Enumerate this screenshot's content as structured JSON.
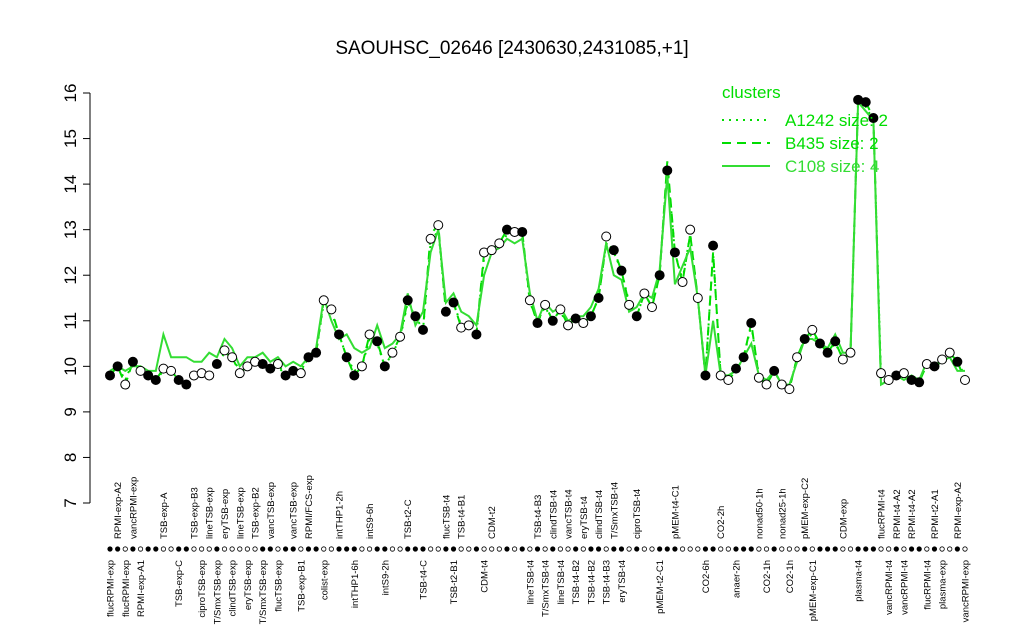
{
  "chart_data": {
    "type": "line",
    "title": "SAOUHSC_02646 [2430630,2431085,+1]",
    "ylim": [
      7,
      16
    ],
    "yticks": [
      7,
      8,
      9,
      10,
      11,
      12,
      13,
      14,
      15,
      16
    ],
    "categories": [
      "flucRPMI-exp",
      "RPMI-exp-A2",
      "flucRPMI-exp",
      "vancRPMI-exp",
      "RPMI-exp-A1",
      null,
      null,
      "TSB-exp-A",
      null,
      "TSB-exp-C",
      null,
      "TSB-exp-B3",
      "ciproTSB-exp",
      "lineTSB-exp",
      "T/SmxTSB-exp",
      "eryTSB-exp",
      "clindTSB-exp",
      "lineTSB-exp",
      "eryTSB-exp",
      "TSB-exp-B2",
      "T/SmxTSB-exp",
      "vancTSB-exp",
      "flucTSB-exp",
      null,
      "vancTSB-exp",
      "TSB-exp-B1",
      "RPMI/FCS-exp",
      null,
      "colist-exp",
      null,
      "intTHP1-2h",
      null,
      "intTHP1-6h",
      null,
      "intS9-6h",
      null,
      "intS9-2h",
      null,
      null,
      "TSB-t2-C",
      null,
      "TSB-t4-C",
      null,
      null,
      "flucTSB-t4",
      "TSB-t2-B1",
      "TSB-t4-B1",
      null,
      null,
      "CDM-t4",
      "CDM-t2",
      null,
      null,
      null,
      null,
      "lineTSB-t4",
      "TSB-t4-B3",
      "T/SmxTSB-t4",
      "clindTSB-t4",
      "lineTSB-t4",
      "vancTSB-t4",
      "TSB-t4-B2",
      "eryTSB-t4",
      "TSB-t4-B2",
      "clindTSB-t4",
      "TSB-t4-B3",
      "T/SmxTSB-t4",
      "eryTSB-t4",
      null,
      "ciproTSB-t4",
      null,
      null,
      "pMEM-t2-C1",
      null,
      "pMEM-t4-C1",
      null,
      null,
      null,
      "CO2-6h",
      null,
      "CO2-2h",
      null,
      "anaer-2h",
      null,
      null,
      "nonad50-1h",
      "CO2-1h",
      null,
      "nonad25-1h",
      "CO2-1h",
      null,
      "pMEM-exp-C2",
      "pMEM-exp-C1",
      null,
      null,
      null,
      "CDM-exp",
      null,
      "plasma-t4",
      null,
      null,
      "flucRPMI-t4",
      "vancRPMI-t4",
      "RPMI-t4-A2",
      "vancRPMI-t4",
      "RPMI-t4-A2",
      null,
      "flucRPMI-t4",
      "RPMI-t2-A1",
      "plasma-exp",
      null,
      "RPMI-exp-A2",
      "vancRPMI-exp"
    ],
    "values": [
      9.8,
      10.0,
      9.6,
      10.1,
      9.9,
      9.8,
      9.7,
      9.95,
      9.9,
      9.7,
      9.6,
      9.8,
      9.85,
      9.8,
      10.05,
      10.35,
      10.2,
      9.85,
      10.0,
      10.1,
      10.05,
      9.95,
      10.05,
      9.8,
      9.9,
      9.85,
      10.2,
      10.3,
      11.45,
      11.25,
      10.7,
      10.2,
      9.8,
      10.0,
      10.7,
      10.55,
      10.0,
      10.3,
      10.65,
      11.45,
      11.1,
      10.8,
      12.8,
      13.1,
      11.2,
      11.4,
      10.85,
      10.9,
      10.7,
      12.5,
      12.55,
      12.7,
      13.0,
      12.95,
      12.95,
      11.45,
      10.95,
      11.35,
      11.0,
      11.25,
      10.9,
      11.05,
      10.95,
      11.1,
      11.5,
      12.85,
      12.55,
      12.1,
      11.35,
      11.1,
      11.6,
      11.3,
      12.0,
      14.3,
      12.5,
      11.85,
      13.0,
      11.5,
      9.8,
      12.65,
      9.8,
      9.7,
      9.95,
      10.2,
      10.95,
      9.75,
      9.6,
      9.9,
      9.6,
      9.5,
      10.2,
      10.6,
      10.8,
      10.5,
      10.3,
      10.55,
      10.15,
      10.3,
      15.85,
      15.8,
      15.45,
      9.85,
      9.7,
      9.8,
      9.85,
      9.7,
      9.65,
      10.05,
      10.0,
      10.15,
      10.3,
      10.1,
      9.7
    ],
    "filled": [
      true,
      true,
      false,
      true,
      false,
      true,
      true,
      false,
      false,
      true,
      true,
      false,
      false,
      false,
      true,
      false,
      false,
      false,
      false,
      false,
      true,
      true,
      false,
      true,
      true,
      false,
      true,
      true,
      false,
      false,
      true,
      true,
      true,
      false,
      false,
      true,
      true,
      false,
      false,
      true,
      true,
      true,
      false,
      false,
      true,
      true,
      false,
      false,
      true,
      false,
      false,
      false,
      true,
      false,
      true,
      false,
      true,
      false,
      true,
      false,
      false,
      true,
      false,
      true,
      true,
      false,
      true,
      true,
      false,
      true,
      false,
      false,
      true,
      true,
      true,
      false,
      false,
      false,
      true,
      true,
      false,
      false,
      true,
      true,
      true,
      false,
      false,
      true,
      false,
      false,
      false,
      true,
      false,
      true,
      true,
      true,
      false,
      false,
      true,
      true,
      true,
      false,
      false,
      true,
      false,
      true,
      true,
      false,
      true,
      false,
      false,
      true,
      false
    ],
    "legend_title": "clusters",
    "series": [
      {
        "name": "A1242 size: 2",
        "color": "#00dd00",
        "dash": "dotted",
        "values": [
          9.8,
          10.0,
          9.7,
          10.1,
          9.9,
          9.8,
          9.7,
          9.9,
          9.9,
          9.7,
          9.6,
          9.8,
          9.8,
          9.8,
          10.0,
          10.3,
          10.2,
          9.9,
          10.0,
          10.1,
          10.0,
          9.9,
          10.0,
          9.8,
          9.9,
          9.9,
          10.2,
          10.3,
          11.4,
          11.2,
          10.7,
          10.2,
          9.9,
          10.0,
          10.6,
          10.5,
          10.0,
          10.3,
          10.6,
          11.4,
          11.1,
          10.8,
          12.7,
          13.0,
          11.2,
          11.4,
          10.9,
          10.9,
          10.7,
          12.4,
          12.5,
          12.6,
          12.9,
          12.9,
          12.9,
          11.4,
          11.0,
          11.3,
          11.0,
          11.2,
          10.9,
          11.0,
          11.0,
          11.1,
          11.5,
          12.7,
          12.5,
          12.1,
          11.4,
          11.1,
          11.6,
          11.3,
          12.0,
          14.4,
          12.5,
          11.9,
          12.9,
          11.5,
          9.8,
          12.5,
          9.8,
          9.7,
          9.9,
          10.2,
          10.9,
          9.8,
          9.6,
          9.9,
          9.6,
          9.5,
          10.2,
          10.6,
          10.7,
          10.5,
          10.3,
          10.5,
          10.2,
          10.3,
          15.8,
          15.7,
          15.4,
          9.8,
          9.7,
          9.8,
          9.8,
          9.7,
          9.7,
          10.0,
          10.0,
          10.1,
          10.3,
          10.1,
          9.8
        ]
      },
      {
        "name": "B435 size: 2",
        "color": "#00dd00",
        "dash": "dashed",
        "values": [
          9.8,
          10.0,
          9.6,
          10.1,
          9.9,
          9.8,
          9.7,
          9.95,
          9.9,
          9.7,
          9.6,
          9.8,
          9.85,
          9.8,
          10.05,
          10.35,
          10.2,
          9.85,
          10.0,
          10.1,
          10.05,
          9.95,
          10.05,
          9.8,
          9.9,
          9.85,
          10.2,
          10.3,
          11.45,
          11.25,
          10.7,
          10.2,
          9.8,
          10.0,
          10.7,
          10.55,
          10.0,
          10.3,
          10.65,
          11.45,
          11.1,
          10.8,
          12.9,
          13.1,
          11.2,
          11.4,
          10.85,
          10.9,
          10.7,
          12.5,
          12.55,
          12.7,
          13.0,
          12.95,
          12.95,
          11.45,
          10.95,
          11.35,
          11.0,
          11.25,
          10.9,
          11.05,
          10.95,
          11.1,
          11.5,
          12.7,
          12.55,
          12.1,
          11.35,
          11.1,
          11.6,
          11.3,
          12.0,
          14.5,
          12.5,
          11.85,
          12.9,
          11.5,
          9.8,
          12.5,
          9.8,
          9.7,
          9.95,
          10.2,
          10.95,
          9.75,
          9.6,
          9.9,
          9.6,
          9.5,
          10.2,
          10.6,
          10.8,
          10.5,
          10.3,
          10.55,
          10.15,
          10.3,
          15.85,
          15.8,
          15.45,
          9.6,
          9.7,
          9.8,
          9.85,
          9.7,
          9.65,
          10.05,
          10.0,
          10.15,
          10.3,
          10.1,
          9.7
        ]
      },
      {
        "name": "C108 size: 4",
        "color": "#33dd33",
        "dash": "solid",
        "values": [
          9.9,
          10.0,
          9.9,
          10.0,
          10.0,
          9.9,
          9.9,
          10.7,
          10.2,
          10.2,
          10.2,
          10.1,
          10.1,
          10.3,
          10.2,
          10.6,
          10.4,
          10.0,
          10.2,
          10.2,
          10.3,
          10.1,
          10.2,
          10.0,
          10.1,
          10.0,
          10.2,
          10.4,
          11.5,
          11.0,
          10.6,
          10.7,
          10.4,
          10.3,
          10.4,
          10.9,
          10.4,
          10.5,
          10.7,
          11.6,
          10.9,
          11.2,
          12.5,
          13.0,
          11.4,
          11.6,
          11.2,
          11.1,
          10.9,
          12.0,
          12.5,
          12.6,
          12.8,
          12.7,
          12.8,
          11.6,
          11.0,
          11.4,
          11.2,
          11.3,
          11.0,
          11.1,
          11.1,
          11.3,
          11.7,
          12.7,
          12.0,
          11.9,
          11.2,
          11.3,
          11.6,
          11.5,
          12.1,
          14.2,
          11.8,
          12.2,
          12.6,
          11.5,
          9.8,
          11.0,
          9.8,
          9.8,
          9.9,
          10.2,
          10.5,
          9.8,
          9.7,
          9.9,
          9.6,
          9.6,
          10.1,
          10.6,
          10.6,
          10.5,
          10.4,
          10.7,
          10.3,
          10.3,
          15.8,
          15.6,
          15.4,
          9.6,
          9.7,
          9.8,
          9.7,
          9.8,
          9.7,
          10.1,
          10.0,
          10.1,
          10.2,
          9.9,
          9.9
        ]
      }
    ]
  }
}
